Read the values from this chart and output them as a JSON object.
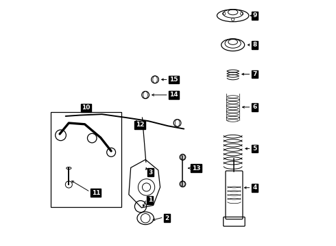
{
  "background_color": "#ffffff",
  "line_color": "#000000",
  "figsize": [
    4.9,
    3.6
  ],
  "dpi": 100
}
